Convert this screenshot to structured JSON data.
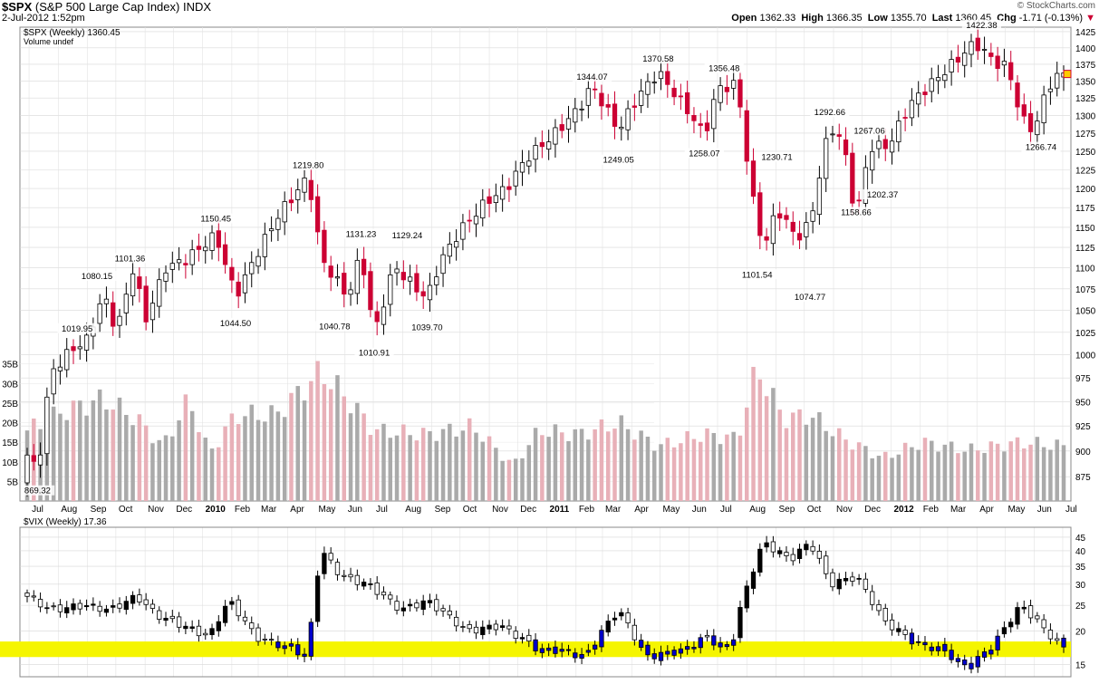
{
  "header": {
    "symbol": "$SPX",
    "name": "(S&P 500 Large Cap Index)",
    "exchange": "INDX",
    "datetime": "2-Jul-2012 1:52pm",
    "brand": "© StockCharts.com",
    "quote": {
      "open_label": "Open",
      "open": "1362.33",
      "high_label": "High",
      "high": "1366.35",
      "low_label": "Low",
      "low": "1355.70",
      "last_label": "Last",
      "last": "1360.45",
      "chg_label": "Chg",
      "chg": "-1.71 (-0.13%)"
    }
  },
  "chart_data": [
    {
      "type": "candlestick",
      "title": "$SPX (Weekly) 1360.45",
      "legend": [
        "$SPX (Weekly) 1360.45",
        "Volume undef"
      ],
      "timeframe": "weekly",
      "x_range": [
        "2009-06-29",
        "2012-07-02"
      ],
      "ylim": [
        852,
        1432
      ],
      "y_scale": "log",
      "y_ticks": [
        875,
        900,
        925,
        950,
        975,
        1000,
        1025,
        1050,
        1075,
        1100,
        1125,
        1150,
        1175,
        1200,
        1225,
        1250,
        1275,
        1300,
        1325,
        1350,
        1375,
        1400,
        1425
      ],
      "close_path": [
        [
          "2009-06-29",
          896
        ],
        [
          "2009-07-10",
          880
        ],
        [
          "2009-07-24",
          980
        ],
        [
          "2009-08-14",
          1005
        ],
        [
          "2009-08-31",
          1016
        ],
        [
          "2009-09-18",
          1068
        ],
        [
          "2009-10-02",
          1026
        ],
        [
          "2009-10-19",
          1098
        ],
        [
          "2009-11-02",
          1040
        ],
        [
          "2009-11-23",
          1100
        ],
        [
          "2009-12-14",
          1110
        ],
        [
          "2010-01-15",
          1140
        ],
        [
          "2010-02-05",
          1066
        ],
        [
          "2010-03-01",
          1120
        ],
        [
          "2010-03-22",
          1165
        ],
        [
          "2010-04-23",
          1215
        ],
        [
          "2010-05-07",
          1110
        ],
        [
          "2010-05-21",
          1088
        ],
        [
          "2010-06-04",
          1065
        ],
        [
          "2010-06-18",
          1118
        ],
        [
          "2010-07-02",
          1022
        ],
        [
          "2010-07-23",
          1102
        ],
        [
          "2010-08-13",
          1078
        ],
        [
          "2010-08-27",
          1064
        ],
        [
          "2010-09-10",
          1108
        ],
        [
          "2010-10-01",
          1146
        ],
        [
          "2010-10-29",
          1183
        ],
        [
          "2010-11-19",
          1200
        ],
        [
          "2010-12-10",
          1240
        ],
        [
          "2011-01-07",
          1271
        ],
        [
          "2011-02-04",
          1310
        ],
        [
          "2011-02-18",
          1343
        ],
        [
          "2011-03-18",
          1279
        ],
        [
          "2011-04-08",
          1328
        ],
        [
          "2011-04-29",
          1363
        ],
        [
          "2011-05-13",
          1338
        ],
        [
          "2011-06-03",
          1300
        ],
        [
          "2011-06-17",
          1271
        ],
        [
          "2011-07-01",
          1339
        ],
        [
          "2011-07-22",
          1345
        ],
        [
          "2011-08-05",
          1199
        ],
        [
          "2011-08-19",
          1123
        ],
        [
          "2011-09-02",
          1174
        ],
        [
          "2011-09-23",
          1136
        ],
        [
          "2011-10-07",
          1155
        ],
        [
          "2011-10-28",
          1285
        ],
        [
          "2011-11-11",
          1263
        ],
        [
          "2011-11-25",
          1158
        ],
        [
          "2011-12-09",
          1255
        ],
        [
          "2011-12-30",
          1258
        ],
        [
          "2012-01-20",
          1315
        ],
        [
          "2012-02-10",
          1343
        ],
        [
          "2012-03-02",
          1370
        ],
        [
          "2012-03-30",
          1408
        ],
        [
          "2012-04-20",
          1378
        ],
        [
          "2012-05-04",
          1370
        ],
        [
          "2012-05-18",
          1295
        ],
        [
          "2012-06-01",
          1278
        ],
        [
          "2012-06-15",
          1342
        ],
        [
          "2012-06-29",
          1362
        ],
        [
          "2012-07-02",
          1360.45
        ]
      ],
      "annotations": [
        {
          "date": "2009-07-10",
          "value": 869.32,
          "label": "869.32"
        },
        {
          "date": "2009-08-21",
          "value": 1019.95,
          "label": "1019.95"
        },
        {
          "date": "2009-09-11",
          "value": 1080.15,
          "label": "1080.15"
        },
        {
          "date": "2009-10-16",
          "value": 1101.36,
          "label": "1101.36"
        },
        {
          "date": "2010-01-15",
          "value": 1150.45,
          "label": "1150.45"
        },
        {
          "date": "2010-02-05",
          "value": 1044.5,
          "label": "1044.50"
        },
        {
          "date": "2010-04-23",
          "value": 1219.8,
          "label": "1219.80"
        },
        {
          "date": "2010-05-21",
          "value": 1040.78,
          "label": "1040.78"
        },
        {
          "date": "2010-06-18",
          "value": 1131.23,
          "label": "1131.23"
        },
        {
          "date": "2010-07-02",
          "value": 1010.91,
          "label": "1010.91"
        },
        {
          "date": "2010-08-06",
          "value": 1129.24,
          "label": "1129.24"
        },
        {
          "date": "2010-08-27",
          "value": 1039.7,
          "label": "1039.70"
        },
        {
          "date": "2011-02-18",
          "value": 1344.07,
          "label": "1344.07"
        },
        {
          "date": "2011-03-18",
          "value": 1249.05,
          "label": "1249.05"
        },
        {
          "date": "2011-04-29",
          "value": 1370.58,
          "label": "1370.58"
        },
        {
          "date": "2011-06-17",
          "value": 1258.07,
          "label": "1258.07"
        },
        {
          "date": "2011-07-08",
          "value": 1356.48,
          "label": "1356.48"
        },
        {
          "date": "2011-08-12",
          "value": 1101.54,
          "label": "1101.54"
        },
        {
          "date": "2011-09-02",
          "value": 1230.71,
          "label": "1230.71"
        },
        {
          "date": "2011-10-07",
          "value": 1074.77,
          "label": "1074.77"
        },
        {
          "date": "2011-10-28",
          "value": 1292.66,
          "label": "1292.66"
        },
        {
          "date": "2011-11-25",
          "value": 1158.66,
          "label": "1158.66"
        },
        {
          "date": "2011-12-09",
          "value": 1267.06,
          "label": "1267.06"
        },
        {
          "date": "2011-12-23",
          "value": 1202.37,
          "label": "1202.37"
        },
        {
          "date": "2012-04-06",
          "value": 1422.38,
          "label": "1422.38"
        },
        {
          "date": "2012-06-08",
          "value": 1266.74,
          "label": "1266.74"
        }
      ],
      "volume": {
        "legend": "Volume undef",
        "ylim": [
          0,
          40
        ],
        "y_ticks": [
          5,
          10,
          15,
          20,
          25,
          30,
          35
        ],
        "y_tick_labels": [
          "5B",
          "10B",
          "15B",
          "20B",
          "25B",
          "30B",
          "35B"
        ],
        "unit": "B",
        "sample_points": [
          [
            "2009-06-29",
            18
          ],
          [
            "2009-08-07",
            23
          ],
          [
            "2009-09-18",
            26
          ],
          [
            "2009-10-23",
            21
          ],
          [
            "2009-11-20",
            14
          ],
          [
            "2009-12-18",
            26
          ],
          [
            "2010-01-08",
            12
          ],
          [
            "2010-02-05",
            22
          ],
          [
            "2010-03-19",
            22
          ],
          [
            "2010-05-07",
            33
          ],
          [
            "2010-06-04",
            26
          ],
          [
            "2010-07-02",
            18
          ],
          [
            "2010-08-27",
            17
          ],
          [
            "2010-10-15",
            19
          ],
          [
            "2010-11-26",
            9
          ],
          [
            "2010-12-24",
            18
          ],
          [
            "2011-02-04",
            17
          ],
          [
            "2011-03-18",
            20
          ],
          [
            "2011-04-29",
            14
          ],
          [
            "2011-06-17",
            17
          ],
          [
            "2011-07-22",
            16
          ],
          [
            "2011-08-12",
            34
          ],
          [
            "2011-09-09",
            21
          ],
          [
            "2011-10-07",
            22
          ],
          [
            "2011-11-11",
            16
          ],
          [
            "2011-12-23",
            11
          ],
          [
            "2012-02-03",
            15
          ],
          [
            "2012-03-23",
            13
          ],
          [
            "2012-05-18",
            15
          ],
          [
            "2012-07-02",
            14
          ]
        ]
      },
      "x_axis_labels": [
        "Jul",
        "Aug",
        "Sep",
        "Oct",
        "Nov",
        "Dec",
        "2010",
        "Feb",
        "Mar",
        "Apr",
        "May",
        "Jun",
        "Jul",
        "Aug",
        "Sep",
        "Oct",
        "Nov",
        "Dec",
        "2011",
        "Feb",
        "Mar",
        "Apr",
        "May",
        "Jun",
        "Jul",
        "Aug",
        "Sep",
        "Oct",
        "Nov",
        "Dec",
        "2012",
        "Feb",
        "Mar",
        "Apr",
        "May",
        "Jun",
        "Jul"
      ],
      "colors": {
        "down": "#cc0033",
        "up_fill": "#ffffff",
        "outline": "#000000",
        "volume_down": "#e8b0b8",
        "volume_up": "#aaaaaa",
        "grid": "#d8d8d8"
      }
    },
    {
      "type": "candlestick",
      "title": "$VIX (Weekly) 17.36",
      "legend": [
        "$VIX (Weekly) 17.36"
      ],
      "timeframe": "weekly",
      "ylim": [
        13.5,
        49
      ],
      "y_scale": "log",
      "y_ticks": [
        15,
        20,
        25,
        30,
        35,
        40,
        45
      ],
      "highlight_band": {
        "from": 16,
        "to": 18.3,
        "color": "#f5f500"
      },
      "close_path": [
        [
          "2009-06-29",
          27
        ],
        [
          "2009-07-24",
          24
        ],
        [
          "2009-08-28",
          25
        ],
        [
          "2009-09-25",
          24
        ],
        [
          "2009-10-23",
          27
        ],
        [
          "2009-11-13",
          23
        ],
        [
          "2009-12-11",
          21
        ],
        [
          "2010-01-08",
          19
        ],
        [
          "2010-01-29",
          26
        ],
        [
          "2010-02-26",
          19
        ],
        [
          "2010-04-09",
          17
        ],
        [
          "2010-04-23",
          16
        ],
        [
          "2010-05-07",
          40
        ],
        [
          "2010-05-28",
          32
        ],
        [
          "2010-06-25",
          30
        ],
        [
          "2010-07-30",
          24
        ],
        [
          "2010-08-27",
          26
        ],
        [
          "2010-10-08",
          20
        ],
        [
          "2010-11-12",
          21
        ],
        [
          "2010-12-24",
          17
        ],
        [
          "2011-01-14",
          17
        ],
        [
          "2011-02-11",
          16
        ],
        [
          "2011-03-18",
          24
        ],
        [
          "2011-04-15",
          16
        ],
        [
          "2011-05-27",
          17
        ],
        [
          "2011-06-17",
          19
        ],
        [
          "2011-07-15",
          17
        ],
        [
          "2011-08-05",
          32
        ],
        [
          "2011-08-19",
          43
        ],
        [
          "2011-09-16",
          37
        ],
        [
          "2011-10-07",
          43
        ],
        [
          "2011-10-28",
          30
        ],
        [
          "2011-11-25",
          32
        ],
        [
          "2011-12-23",
          22
        ],
        [
          "2012-01-27",
          18
        ],
        [
          "2012-02-24",
          17
        ],
        [
          "2012-03-23",
          14.5
        ],
        [
          "2012-04-20",
          18
        ],
        [
          "2012-05-18",
          25
        ],
        [
          "2012-06-08",
          21
        ],
        [
          "2012-06-29",
          17.36
        ]
      ],
      "colors": {
        "down": "#000000",
        "up_fill": "#ffffff",
        "band_low": "#0000cc",
        "grid": "#d8d8d8"
      }
    }
  ]
}
